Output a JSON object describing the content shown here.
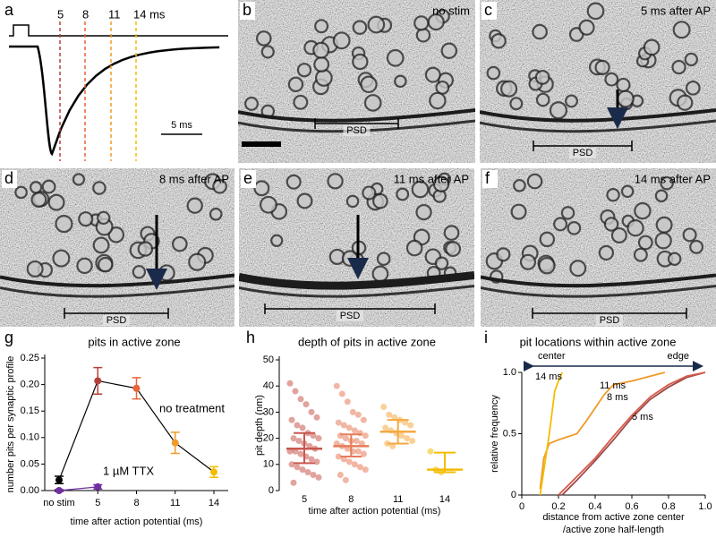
{
  "panel_labels": [
    "a",
    "b",
    "c",
    "d",
    "e",
    "f",
    "g",
    "h",
    "i"
  ],
  "panel_a": {
    "time_labels": [
      "5",
      "8",
      "11",
      "14 ms"
    ],
    "colors": [
      "#b5413a",
      "#e8653a",
      "#f09a28",
      "#f2bd00"
    ],
    "scale_bar": "5 ms"
  },
  "micrographs": [
    {
      "label": "no stim",
      "color": "#000000",
      "psd": "PSD"
    },
    {
      "label": "5 ms after AP",
      "color": "#c0463e",
      "psd": "PSD"
    },
    {
      "label": "8 ms after AP",
      "color": "#ee7448",
      "psd": "PSD"
    },
    {
      "label": "11 ms after AP",
      "color": "#f29a2a",
      "psd": "PSD"
    },
    {
      "label": "14 ms after AP",
      "color": "#f2bd00",
      "psd": "PSD"
    }
  ],
  "chart_data": [
    {
      "type": "line",
      "title": "pits in active zone",
      "x_label": "time after action potential (ms)",
      "y_label": "number pits per synaptic profile",
      "categories": [
        "no stim",
        "5",
        "8",
        "11",
        "14"
      ],
      "category_colors": [
        "#000000",
        "#b5413a",
        "#e8653a",
        "#f09a28",
        "#f2bd00"
      ],
      "series": [
        {
          "name": "no treatment",
          "color": "#000000",
          "marker_color_by_category": true,
          "values": [
            0.02,
            0.207,
            0.193,
            0.09,
            0.035
          ],
          "errors": [
            0.007,
            0.025,
            0.02,
            0.02,
            0.01
          ]
        },
        {
          "name": "1 µM TTX",
          "color": "#7030a0",
          "values": [
            0.0,
            0.007,
            null,
            null,
            null
          ],
          "errors": [
            0.002,
            0.004,
            null,
            null,
            null
          ]
        }
      ],
      "ylim": [
        0,
        0.25
      ],
      "yticks": [
        {
          "value": 0,
          "label": "0.00"
        },
        {
          "value": 0.05,
          "label": "0.05"
        },
        {
          "value": 0.1,
          "label": "0.10"
        },
        {
          "value": 0.15,
          "label": "0.15"
        },
        {
          "value": 0.2,
          "label": "0.20"
        },
        {
          "value": 0.25,
          "label": "0.25"
        }
      ]
    },
    {
      "type": "strip",
      "title": "depth of pits in active zone",
      "x_label": "time after action potential (ms)",
      "y_label": "pit depth (nm)",
      "categories": [
        "5",
        "8",
        "11",
        "14"
      ],
      "colors": [
        "#c9574f",
        "#e67c5a",
        "#f5a940",
        "#f2bd00"
      ],
      "values": [
        [
          41,
          38,
          35,
          33,
          30,
          28,
          27,
          25,
          24,
          22,
          21,
          20,
          20,
          19,
          18,
          17,
          16,
          15,
          15,
          14,
          13,
          12,
          11,
          10,
          9,
          8,
          7,
          6,
          5,
          3
        ],
        [
          40,
          37,
          34,
          30,
          29,
          27,
          26,
          25,
          24,
          23,
          22,
          21,
          21,
          20,
          19,
          19,
          18,
          18,
          17,
          16,
          15,
          15,
          14,
          13,
          12,
          11,
          10,
          9,
          8,
          6,
          4
        ],
        [
          32,
          29,
          28,
          27,
          26,
          25,
          24,
          23,
          22,
          21,
          20,
          19,
          18,
          17
        ],
        [
          15,
          8,
          7
        ]
      ],
      "center": [
        16,
        17,
        22.5,
        8
      ],
      "lower": [
        10.5,
        13,
        18,
        7
      ],
      "upper": [
        22,
        21.5,
        27,
        14.5
      ],
      "ylim": [
        0,
        50
      ],
      "yticks": [
        0,
        10,
        20,
        30,
        40,
        50
      ]
    },
    {
      "type": "line",
      "title": "pit locations within active zone",
      "x_label": [
        "distance from active zone center",
        "/active zone half-length"
      ],
      "y_label": "relative frequency",
      "annotations": [
        "center",
        "edge"
      ],
      "series": [
        {
          "name": "5 ms",
          "color": "#9c4a4a",
          "x": [
            0.22,
            0.3,
            0.4,
            0.5,
            0.6,
            0.7,
            0.8,
            0.9,
            1.0
          ],
          "values": [
            0,
            0.12,
            0.28,
            0.45,
            0.63,
            0.78,
            0.88,
            0.96,
            1.0
          ]
        },
        {
          "name": "8 ms",
          "color": "#d85a4a",
          "x": [
            0.2,
            0.3,
            0.4,
            0.5,
            0.6,
            0.7,
            0.8,
            0.9,
            1.0
          ],
          "values": [
            0,
            0.15,
            0.3,
            0.48,
            0.65,
            0.8,
            0.9,
            0.97,
            1.0
          ]
        },
        {
          "name": "11 ms",
          "color": "#f09a28",
          "x": [
            0.1,
            0.12,
            0.15,
            0.2,
            0.3,
            0.35,
            0.45,
            0.5,
            0.6,
            0.78
          ],
          "values": [
            0.05,
            0.3,
            0.42,
            0.45,
            0.5,
            0.6,
            0.82,
            0.9,
            0.93,
            1.0
          ]
        },
        {
          "name": "14 ms",
          "color": "#f2bd00",
          "x": [
            0.1,
            0.12,
            0.15,
            0.18,
            0.2,
            0.22
          ],
          "values": [
            0,
            0.2,
            0.5,
            0.85,
            0.93,
            1.0
          ]
        }
      ],
      "xlim": [
        0,
        1
      ],
      "xticks": [
        0,
        0.2,
        0.4,
        0.6,
        0.8,
        {
          "value": 1,
          "label": "1.0"
        }
      ],
      "ylim": [
        0,
        1
      ],
      "yticks": [
        0,
        0.5,
        {
          "value": 1,
          "label": "1.0"
        }
      ]
    }
  ]
}
